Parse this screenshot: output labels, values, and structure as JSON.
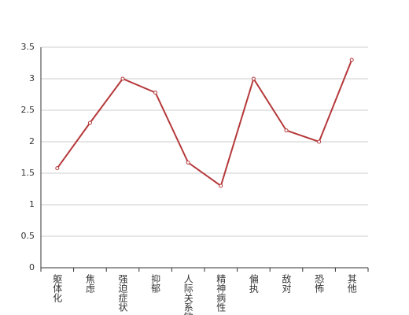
{
  "chart_data": {
    "type": "line",
    "categories": [
      "躯体化",
      "焦虑",
      "强迫症状",
      "抑郁",
      "人际关系敏感",
      "精神病性",
      "偏执",
      "敌对",
      "恐怖",
      "其他"
    ],
    "values": [
      1.58,
      2.3,
      3.0,
      2.78,
      1.67,
      1.3,
      3.0,
      2.18,
      2.0,
      3.3
    ],
    "color": "#b5383a",
    "ylim": [
      0,
      3.5
    ],
    "yticks": [
      0,
      0.5,
      1,
      1.5,
      2,
      2.5,
      3,
      3.5
    ],
    "grid": true
  }
}
